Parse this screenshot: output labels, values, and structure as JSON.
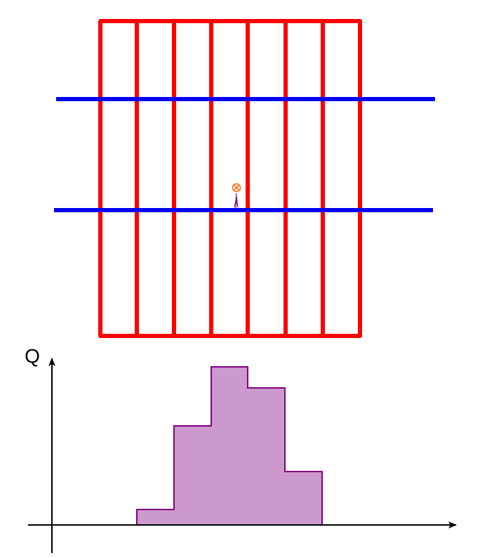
{
  "axis_label": "Q"
}
